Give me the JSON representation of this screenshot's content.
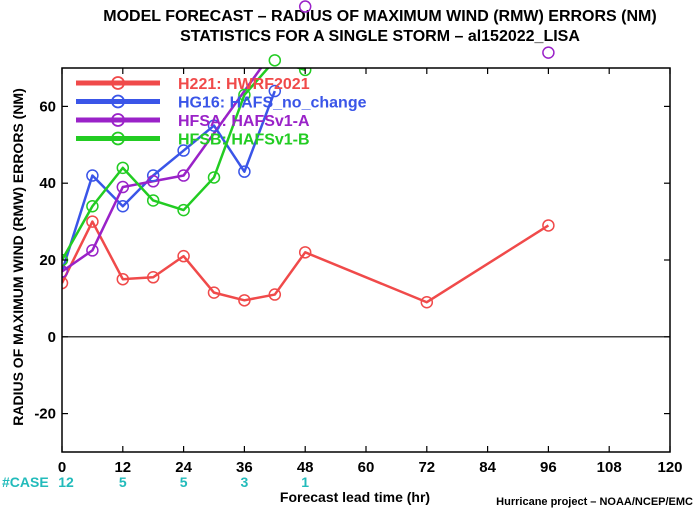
{
  "chart_data": {
    "type": "line",
    "title": "MODEL FORECAST – RADIUS OF MAXIMUM WIND (RMW) ERRORS (NM)",
    "subtitle": "STATISTICS FOR A SINGLE STORM – al152022_LISA",
    "xlabel": "Forecast lead time (hr)",
    "ylabel": "RADIUS OF MAXIMUM WIND (RMW) ERRORS (NM)",
    "xlim": [
      0,
      120
    ],
    "ylim": [
      -30,
      70
    ],
    "xticks": [
      0,
      12,
      24,
      36,
      48,
      60,
      72,
      84,
      96,
      108,
      120
    ],
    "yticks": [
      -20,
      0,
      20,
      40,
      60
    ],
    "zero_line": true,
    "legend_position": "top-left",
    "series": [
      {
        "name": "H221: HWRF2021",
        "color": "#f04a4a",
        "x": [
          0,
          6,
          12,
          18,
          24,
          30,
          36,
          42,
          48,
          72,
          96
        ],
        "y": [
          14,
          30,
          15,
          15.5,
          21,
          11.5,
          9.5,
          11,
          22,
          9,
          29
        ]
      },
      {
        "name": "HG16: HAFS_no_change",
        "color": "#3a55e8",
        "x": [
          0,
          6,
          12,
          18,
          24,
          30,
          36,
          42
        ],
        "y": [
          17,
          42,
          34,
          42,
          48.5,
          55,
          43,
          64
        ]
      },
      {
        "name": "HFSA: HAFSv1-A",
        "color": "#9a22c8",
        "x": [
          0,
          6,
          12,
          18,
          24,
          48
        ],
        "y": [
          17,
          22.5,
          39,
          40.5,
          42,
          86
        ],
        "offscale": [
          {
            "x": 96,
            "y": 74
          }
        ]
      },
      {
        "name": "HFSB: HAFSv1-B",
        "color": "#22cc22",
        "x": [
          0,
          6,
          12,
          18,
          24,
          30,
          36,
          42,
          48
        ],
        "y": [
          20,
          34,
          44,
          35.5,
          33,
          41.5,
          63,
          72,
          69.5
        ]
      }
    ],
    "cases": {
      "label": "#CASE",
      "color": "#22bbbb",
      "x": [
        0,
        12,
        24,
        36,
        48
      ],
      "values": [
        "12",
        "5",
        "5",
        "3",
        "1"
      ]
    }
  },
  "credit": "Hurricane project – NOAA/NCEP/EMC"
}
